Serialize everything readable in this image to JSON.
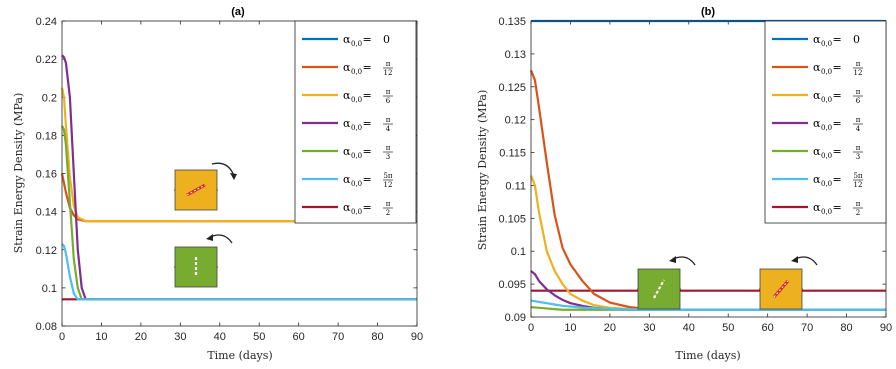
{
  "chart_data": [
    {
      "type": "line",
      "panel": "a",
      "title": "(a)",
      "xlabel": "Time (days)",
      "ylabel": "Strain Energy Density (MPa)",
      "xlim": [
        0,
        90
      ],
      "ylim": [
        0.08,
        0.24
      ],
      "xticks": [
        "0",
        "10",
        "20",
        "30",
        "40",
        "50",
        "60",
        "70",
        "80",
        "90"
      ],
      "yticks": [
        "0.08",
        "0.1",
        "0.12",
        "0.14",
        "0.16",
        "0.18",
        "0.2",
        "0.22",
        "0.24"
      ],
      "grid": false,
      "legend_position": "top-right",
      "series": [
        {
          "name": "α0,0 = 0",
          "color": "#0072BD",
          "x": [],
          "y": []
        },
        {
          "name": "α0,0 = π/12",
          "color": "#D95319",
          "x": [
            0,
            1,
            2,
            3,
            4,
            6,
            90
          ],
          "y": [
            0.16,
            0.15,
            0.142,
            0.138,
            0.136,
            0.135,
            0.135
          ]
        },
        {
          "name": "α0,0 = π/6",
          "color": "#EDB120",
          "x": [
            0,
            0.5,
            1,
            2,
            3,
            4,
            6,
            90
          ],
          "y": [
            0.205,
            0.2,
            0.185,
            0.158,
            0.143,
            0.137,
            0.135,
            0.135
          ]
        },
        {
          "name": "α0,0 = π/4",
          "color": "#7E2F8E",
          "x": [
            0,
            0.5,
            1,
            2,
            3,
            4,
            5,
            6,
            90
          ],
          "y": [
            0.222,
            0.221,
            0.218,
            0.2,
            0.16,
            0.12,
            0.1,
            0.094,
            0.094
          ]
        },
        {
          "name": "α0,0 = π/3",
          "color": "#77AC30",
          "x": [
            0,
            0.5,
            1,
            2,
            3,
            4,
            5,
            90
          ],
          "y": [
            0.185,
            0.183,
            0.175,
            0.145,
            0.115,
            0.1,
            0.094,
            0.094
          ]
        },
        {
          "name": "α0,0 = 5π/12",
          "color": "#4DBEEE",
          "x": [
            0,
            0.5,
            1,
            2,
            3,
            4,
            90
          ],
          "y": [
            0.123,
            0.122,
            0.118,
            0.106,
            0.097,
            0.094,
            0.094
          ]
        },
        {
          "name": "α0,0 = π/2",
          "color": "#A2142F",
          "x": [
            0,
            90
          ],
          "y": [
            0.094,
            0.094
          ]
        }
      ]
    },
    {
      "type": "line",
      "panel": "b",
      "title": "(b)",
      "xlabel": "Time (days)",
      "ylabel": "Strain Energy Density (MPa)",
      "xlim": [
        0,
        90
      ],
      "ylim": [
        0.09,
        0.135
      ],
      "xticks": [
        "0",
        "10",
        "20",
        "30",
        "40",
        "50",
        "60",
        "70",
        "80",
        "90"
      ],
      "yticks": [
        "0.09",
        "0.095",
        "0.1",
        "0.105",
        "0.11",
        "0.115",
        "0.12",
        "0.125",
        "0.13",
        "0.135"
      ],
      "grid": false,
      "legend_position": "top-right",
      "series": [
        {
          "name": "α0,0 = 0",
          "color": "#0072BD",
          "x": [
            0,
            90
          ],
          "y": [
            0.135,
            0.135
          ]
        },
        {
          "name": "α0,0 = π/12",
          "color": "#D95319",
          "x": [
            0,
            1,
            2,
            4,
            6,
            8,
            10,
            13,
            16,
            20,
            25,
            30,
            35,
            40,
            90
          ],
          "y": [
            0.1275,
            0.126,
            0.122,
            0.1135,
            0.1055,
            0.1005,
            0.098,
            0.0955,
            0.0935,
            0.0922,
            0.0915,
            0.0912,
            0.0911,
            0.0911,
            0.0911
          ]
        },
        {
          "name": "α0,0 = π/6",
          "color": "#EDB120",
          "x": [
            0,
            1,
            2,
            4,
            6,
            8,
            10,
            13,
            16,
            20,
            25,
            30,
            90
          ],
          "y": [
            0.1115,
            0.11,
            0.106,
            0.1,
            0.097,
            0.095,
            0.0935,
            0.0925,
            0.0918,
            0.0914,
            0.0912,
            0.0911,
            0.0911
          ]
        },
        {
          "name": "α0,0 = π/4",
          "color": "#7E2F8E",
          "x": [
            0,
            1,
            2,
            4,
            6,
            8,
            10,
            13,
            16,
            20,
            25,
            90
          ],
          "y": [
            0.097,
            0.0965,
            0.0955,
            0.0942,
            0.0933,
            0.0926,
            0.0921,
            0.0917,
            0.0914,
            0.0912,
            0.0911,
            0.0911
          ]
        },
        {
          "name": "α0,0 = π/3",
          "color": "#77AC30",
          "x": [
            0,
            2,
            4,
            6,
            8,
            10,
            15,
            90
          ],
          "y": [
            0.0915,
            0.0914,
            0.0913,
            0.0912,
            0.0911,
            0.0911,
            0.0911,
            0.0911
          ]
        },
        {
          "name": "α0,0 = 5π/12",
          "color": "#4DBEEE",
          "x": [
            0,
            2,
            4,
            6,
            8,
            10,
            14,
            18,
            22,
            26,
            30,
            90
          ],
          "y": [
            0.0925,
            0.0923,
            0.0921,
            0.0919,
            0.0917,
            0.0916,
            0.0914,
            0.0913,
            0.0912,
            0.0911,
            0.0911,
            0.0911
          ]
        },
        {
          "name": "α0,0 = π/2",
          "color": "#A2142F",
          "x": [
            0,
            90
          ],
          "y": [
            0.094,
            0.094
          ]
        }
      ]
    }
  ],
  "legend_entries": [
    {
      "lhs": "α",
      "sub": "0,0",
      "eq": " = ",
      "num": "0",
      "den": "",
      "color": "#0072BD"
    },
    {
      "lhs": "α",
      "sub": "0,0",
      "eq": " = ",
      "num": "π",
      "den": "12",
      "color": "#D95319"
    },
    {
      "lhs": "α",
      "sub": "0,0",
      "eq": " = ",
      "num": "π",
      "den": "6",
      "color": "#EDB120"
    },
    {
      "lhs": "α",
      "sub": "0,0",
      "eq": " = ",
      "num": "π",
      "den": "4",
      "color": "#7E2F8E"
    },
    {
      "lhs": "α",
      "sub": "0,0",
      "eq": " = ",
      "num": "π",
      "den": "3",
      "color": "#77AC30"
    },
    {
      "lhs": "α",
      "sub": "0,0",
      "eq": " = ",
      "num": "5π",
      "den": "12",
      "color": "#4DBEEE"
    },
    {
      "lhs": "α",
      "sub": "0,0",
      "eq": " = ",
      "num": "π",
      "den": "2",
      "color": "#A2142F"
    }
  ],
  "insets": {
    "orange_fill": "#EDB120",
    "green_fill": "#77AC30",
    "fiber_red": "#D62728",
    "fiber_white": "#FFFFFF"
  }
}
